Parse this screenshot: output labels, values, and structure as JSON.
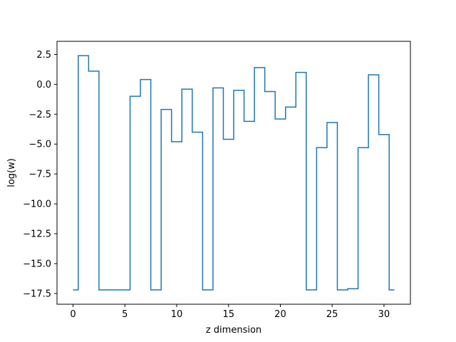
{
  "chart_data": {
    "type": "line",
    "drawstyle": "steps-mid",
    "xlabel": "z dimension",
    "ylabel": "log(w)",
    "xlim": [
      -1.55,
      32.55
    ],
    "ylim": [
      -18.4,
      3.6
    ],
    "xticks": [
      0,
      5,
      10,
      15,
      20,
      25,
      30
    ],
    "xtick_labels": [
      "0",
      "5",
      "10",
      "15",
      "20",
      "25",
      "30"
    ],
    "yticks": [
      2.5,
      0.0,
      -2.5,
      -5.0,
      -7.5,
      -10.0,
      -12.5,
      -15.0,
      -17.5
    ],
    "ytick_labels": [
      "2.5",
      "0.0",
      "−2.5",
      "−5.0",
      "−7.5",
      "−10.0",
      "−12.5",
      "−15.0",
      "−17.5"
    ],
    "grid": false,
    "color": "#1f77b4",
    "series": [
      {
        "x": [
          0,
          1,
          2,
          3,
          4,
          5,
          6,
          7,
          8,
          9,
          10,
          11,
          12,
          13,
          14,
          15,
          16,
          17,
          18,
          19,
          20,
          21,
          22,
          23,
          24,
          25,
          26,
          27,
          28,
          29,
          30,
          31
        ],
        "y": [
          -17.2,
          2.4,
          1.1,
          -17.2,
          -17.2,
          -17.2,
          -1.0,
          0.4,
          -17.2,
          -2.1,
          -4.8,
          -0.4,
          -4.0,
          -17.2,
          -0.3,
          -4.6,
          -0.5,
          -3.1,
          1.4,
          -0.6,
          -2.9,
          -1.9,
          1.0,
          -17.2,
          -5.3,
          -3.2,
          -17.2,
          -17.1,
          -5.3,
          0.8,
          -4.2,
          -17.2
        ]
      }
    ]
  }
}
